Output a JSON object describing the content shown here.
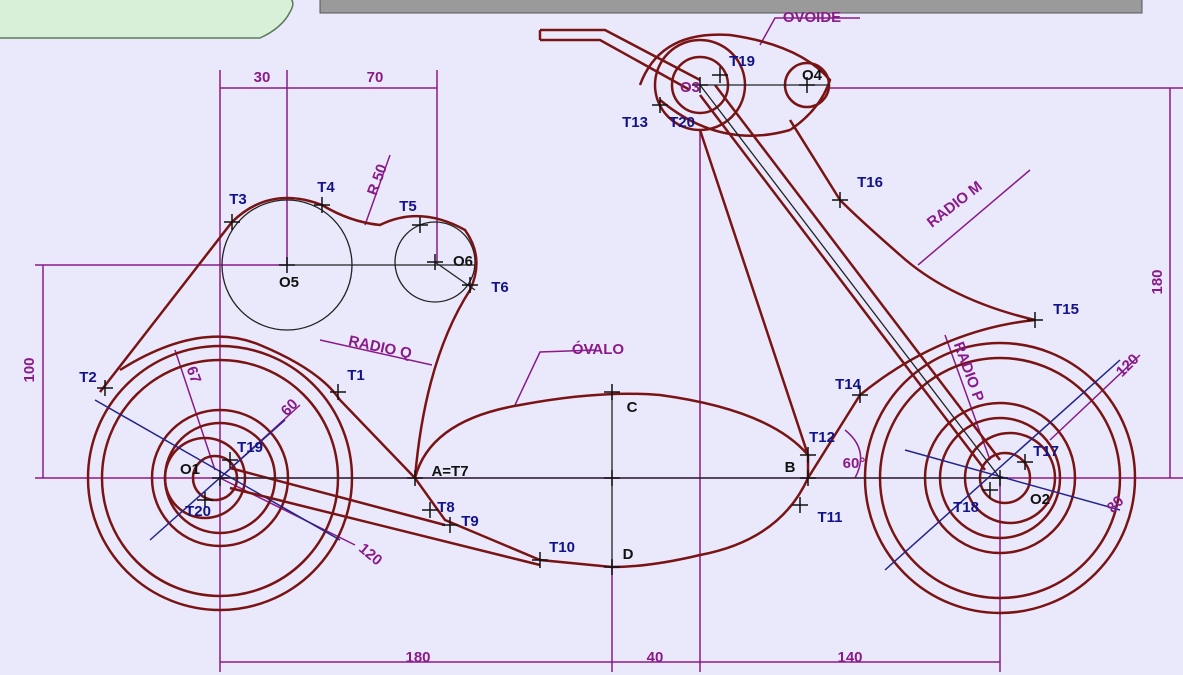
{
  "labels": [
    "30",
    "70",
    "R 50",
    "T3",
    "T4",
    "T5",
    "O5",
    "O6",
    "T6",
    "RADIO Q",
    "100",
    "T2",
    "67",
    "60",
    "T19",
    "O1",
    "T20",
    "120",
    "T1",
    "A=T7",
    "T8",
    "T9",
    "T10",
    "D",
    "C",
    "ÓVALO",
    "OVOIDE",
    "T19",
    "O3",
    "O4",
    "T13",
    "T20",
    "T16",
    "RADIO M",
    "180",
    "T15",
    "T14",
    "RADIO P",
    "120",
    "T12",
    "60°",
    "B",
    "T11",
    "T17",
    "T18",
    "O2",
    "80",
    "180",
    "40",
    "140"
  ]
}
